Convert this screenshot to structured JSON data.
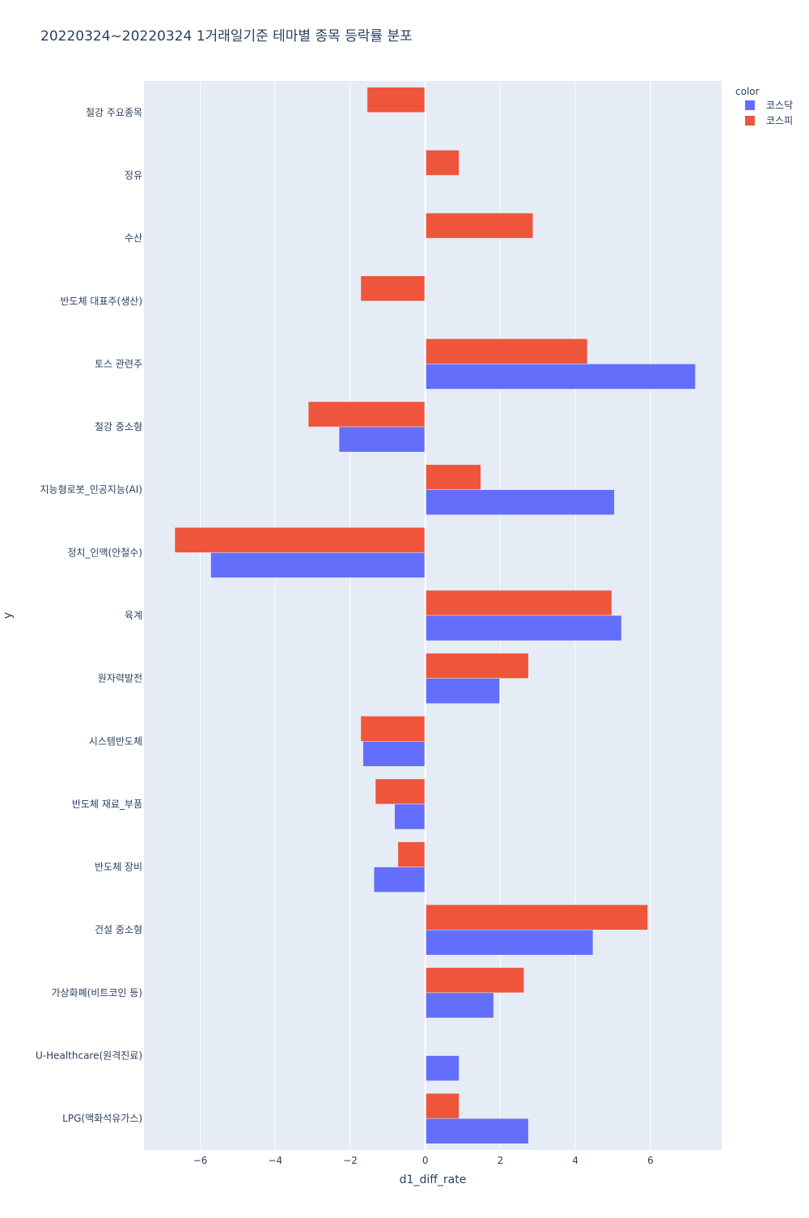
{
  "chart_data": {
    "type": "bar",
    "orientation": "horizontal",
    "title": "20220324~20220324 1거래일기준 테마별 종목 등락률 분포",
    "xlabel": "d1_diff_rate",
    "ylabel": "y",
    "xlim": [
      -7.5,
      7.9
    ],
    "xticks": [
      -6,
      -4,
      -2,
      0,
      2,
      4,
      6
    ],
    "xtick_labels": [
      "−6",
      "−4",
      "−2",
      "0",
      "2",
      "4",
      "6"
    ],
    "grid": true,
    "legend": {
      "title": "color",
      "position": "top-right"
    },
    "categories": [
      "철강 주요종목",
      "정유",
      "수산",
      "반도체 대표주(생산)",
      "토스 관련주",
      "철강 중소형",
      "지능형로봇_인공지능(AI)",
      "정치_인맥(안철수)",
      "육계",
      "원자력발전",
      "시스템반도체",
      "반도체 재료_부품",
      "반도체 장비",
      "건설 중소형",
      "가상화폐(비트코인 등)",
      "U-Healthcare(원격진료)",
      "LPG(액화석유가스)"
    ],
    "series": [
      {
        "name": "코스피",
        "color": "#EF553B",
        "values": [
          -1.55,
          0.9,
          2.87,
          -1.72,
          4.32,
          -3.12,
          1.48,
          -6.68,
          4.97,
          2.75,
          -1.72,
          -1.33,
          -0.73,
          5.93,
          2.63,
          null,
          0.9
        ]
      },
      {
        "name": "코스닥",
        "color": "#636EFA",
        "values": [
          null,
          null,
          null,
          null,
          7.2,
          -2.3,
          5.04,
          -5.72,
          5.23,
          1.98,
          -1.66,
          -0.82,
          -1.37,
          4.47,
          1.82,
          0.9,
          2.75
        ]
      }
    ]
  },
  "colors": {
    "plot_bg": "#E5ECF6",
    "grid": "#FFFFFF",
    "text": "#2A3F5F"
  }
}
